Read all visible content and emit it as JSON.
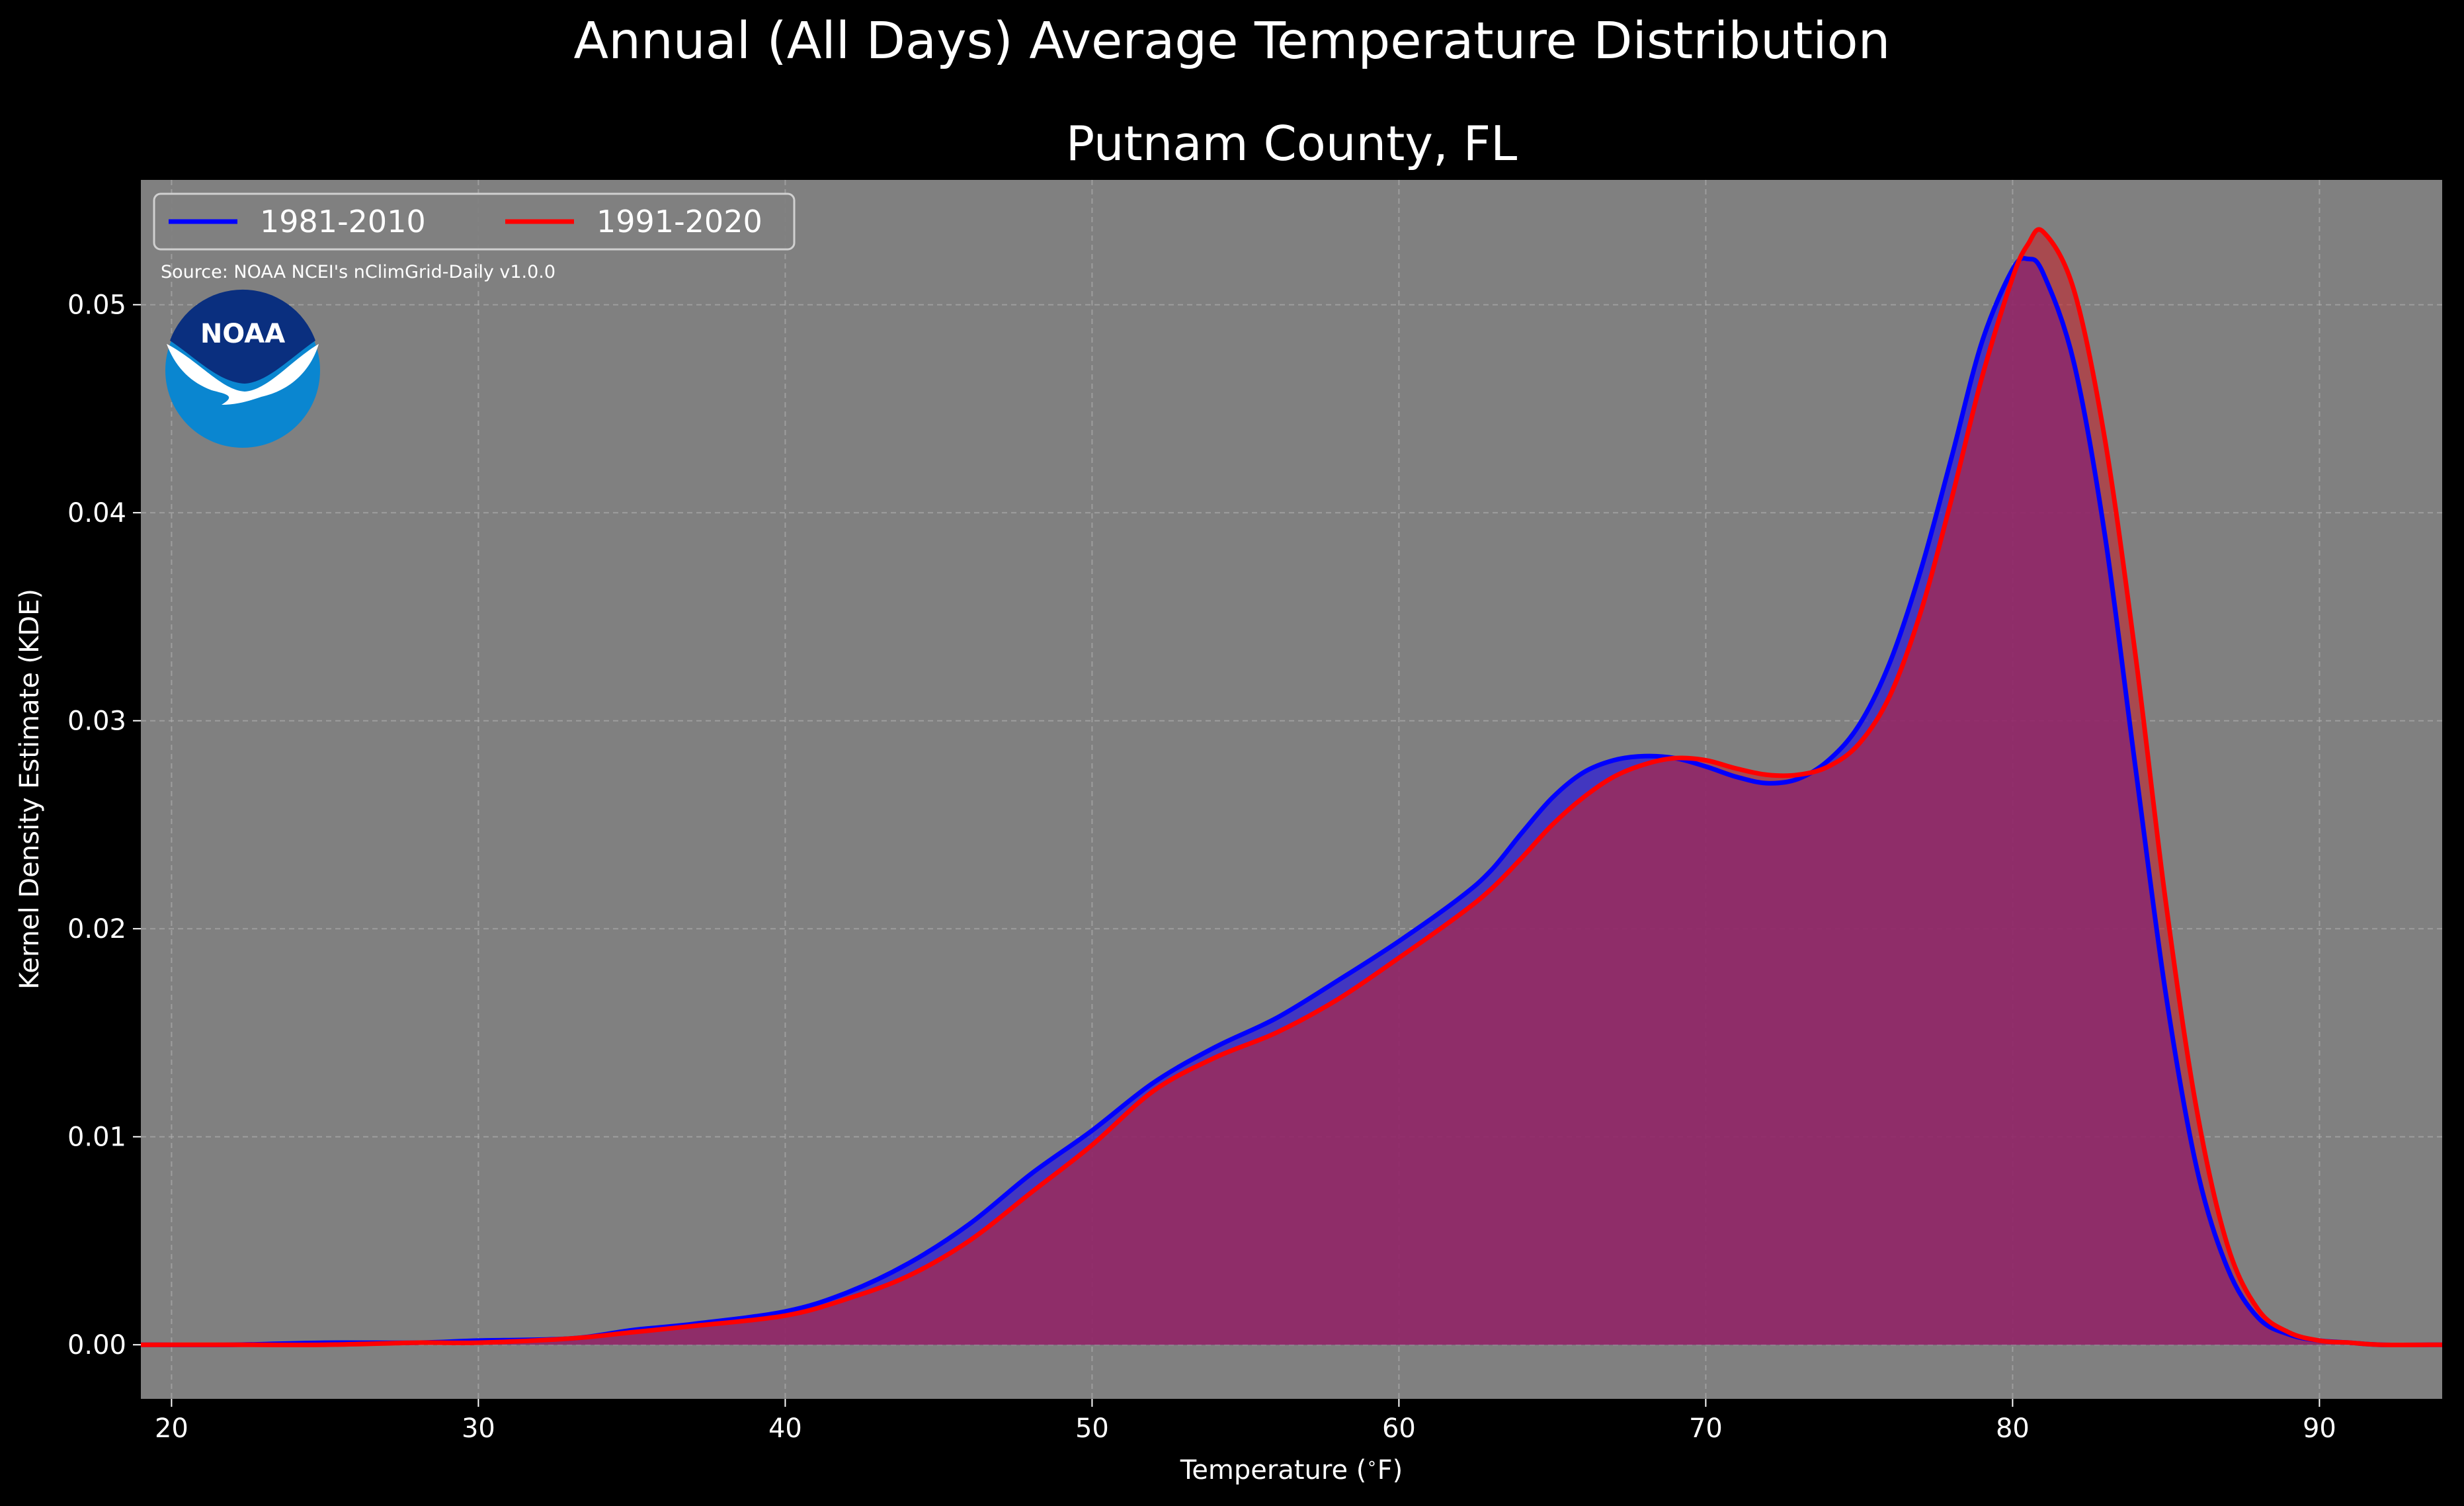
{
  "figure": {
    "suptitle": "Annual (All Days) Average Temperature Distribution",
    "subtitle": "Putnam County, FL",
    "source_note": "Source: NOAA NCEI's nClimGrid-Daily v1.0.0",
    "logo_text": "NOAA",
    "background_color": "#000000",
    "plot_background_color": "#808080"
  },
  "chart_data": {
    "type": "area",
    "title": "Putnam County, FL",
    "xlabel": "Temperature ($^\\circ$F)",
    "ylabel": "Kernel Density Estimate (KDE)",
    "xlim": [
      19,
      94
    ],
    "ylim": [
      -0.0026,
      0.056
    ],
    "xticks": [
      20,
      30,
      40,
      50,
      60,
      70,
      80,
      90
    ],
    "xtick_labels": [
      "20",
      "30",
      "40",
      "50",
      "60",
      "70",
      "80",
      "90"
    ],
    "yticks": [
      0.0,
      0.01,
      0.02,
      0.03,
      0.04,
      0.05
    ],
    "ytick_labels": [
      "0.00",
      "0.01",
      "0.02",
      "0.03",
      "0.04",
      "0.05"
    ],
    "grid": true,
    "legend_position": "top-left",
    "series": [
      {
        "name": "1981-2010",
        "color": "#0000ff",
        "fill_color": "#2e1fd6",
        "x": [
          19,
          22,
          25,
          28,
          30,
          33,
          35,
          37,
          40,
          42,
          44,
          46,
          48,
          50,
          52,
          54,
          56,
          58,
          60,
          62,
          63,
          64,
          65,
          66,
          67,
          68,
          69,
          70,
          71,
          72,
          73,
          74,
          75,
          76,
          77,
          78,
          79,
          80,
          80.5,
          81,
          82,
          83,
          84,
          85,
          86,
          87,
          88,
          89,
          90,
          91,
          92,
          94
        ],
        "y": [
          0.0,
          0.0,
          0.0001,
          0.0001,
          0.0002,
          0.0003,
          0.0007,
          0.001,
          0.0016,
          0.0025,
          0.0039,
          0.0058,
          0.0082,
          0.0103,
          0.0126,
          0.0143,
          0.0157,
          0.0175,
          0.0194,
          0.0215,
          0.0228,
          0.0246,
          0.0263,
          0.0275,
          0.0281,
          0.0283,
          0.0282,
          0.0278,
          0.0273,
          0.027,
          0.0272,
          0.0281,
          0.0298,
          0.0328,
          0.0372,
          0.0426,
          0.0482,
          0.0517,
          0.0522,
          0.0515,
          0.0472,
          0.039,
          0.0278,
          0.0168,
          0.0085,
          0.0037,
          0.0013,
          0.0005,
          0.0002,
          0.0001,
          0.0,
          0.0
        ]
      },
      {
        "name": "1991-2020",
        "color": "#ff0000",
        "fill_color": "#c3262f",
        "x": [
          19,
          22,
          25,
          28,
          30,
          33,
          35,
          37,
          40,
          42,
          44,
          46,
          48,
          50,
          52,
          54,
          56,
          58,
          60,
          62,
          63,
          64,
          65,
          66,
          67,
          68,
          69,
          70,
          71,
          72,
          73,
          74,
          75,
          76,
          77,
          78,
          79,
          80,
          80.5,
          81,
          82,
          83,
          84,
          85,
          86,
          87,
          88,
          89,
          90,
          91,
          92,
          94
        ],
        "y": [
          0.0,
          0.0,
          0.0,
          0.0001,
          0.0001,
          0.0003,
          0.0006,
          0.0009,
          0.0014,
          0.0022,
          0.0033,
          0.005,
          0.0073,
          0.0096,
          0.0122,
          0.0138,
          0.015,
          0.0166,
          0.0186,
          0.0207,
          0.0219,
          0.0234,
          0.025,
          0.0263,
          0.0273,
          0.0279,
          0.0282,
          0.0281,
          0.0277,
          0.0274,
          0.0274,
          0.0278,
          0.0289,
          0.0312,
          0.0352,
          0.0406,
          0.0465,
          0.0513,
          0.0529,
          0.0535,
          0.0507,
          0.0436,
          0.0332,
          0.0212,
          0.0113,
          0.0048,
          0.0017,
          0.0006,
          0.0002,
          0.0001,
          0.0,
          0.0
        ]
      }
    ]
  }
}
